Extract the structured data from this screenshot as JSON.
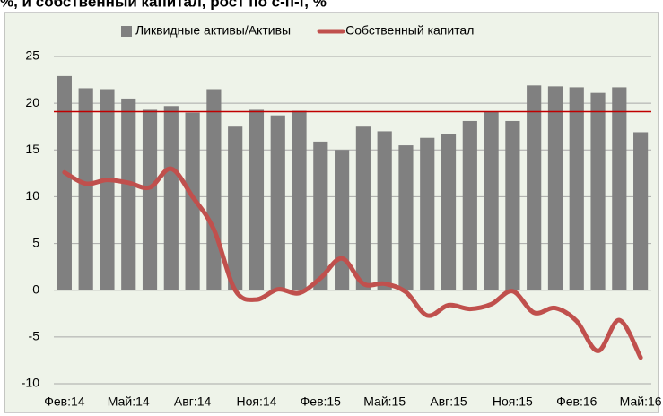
{
  "chart_data": {
    "type": "bar_line",
    "title": "%, и собственный капитал, рост по с-п-г, %",
    "categories": [
      "Фев:14",
      null,
      null,
      "Май:14",
      null,
      null,
      "Авг:14",
      null,
      null,
      "Ноя:14",
      null,
      null,
      "Фев:15",
      null,
      null,
      "Май:15",
      null,
      null,
      "Авг:15",
      null,
      null,
      "Ноя:15",
      null,
      null,
      "Фев:16",
      null,
      null,
      "Май:16"
    ],
    "series": [
      {
        "name": "Ликвидные активы/Активы",
        "color": "#808080",
        "type": "bar",
        "values": [
          22.9,
          21.6,
          21.5,
          20.5,
          19.3,
          19.7,
          19.0,
          21.5,
          17.5,
          19.3,
          18.7,
          19.2,
          15.9,
          15.0,
          17.5,
          17.0,
          15.5,
          16.3,
          16.7,
          18.1,
          19.1,
          18.1,
          21.9,
          21.8,
          21.7,
          21.1,
          21.7,
          16.9
        ]
      },
      {
        "name": "Собственный капитал",
        "color": "#c0504d",
        "type": "line",
        "values": [
          12.6,
          11.4,
          11.8,
          11.5,
          11.0,
          13.0,
          10.0,
          6.5,
          0.0,
          -1.0,
          0.1,
          -0.3,
          1.3,
          3.4,
          0.7,
          0.7,
          -0.2,
          -2.7,
          -1.6,
          -2.0,
          -1.5,
          -0.1,
          -2.4,
          -1.9,
          -3.3,
          -6.5,
          -3.2,
          -7.2
        ]
      }
    ],
    "reference_line": 19.1,
    "reference_color": "#c00000",
    "ylim": [
      -10,
      25
    ],
    "yticks": [
      -10,
      -5,
      0,
      5,
      10,
      15,
      20,
      25
    ],
    "grid": true,
    "legend": "top"
  }
}
